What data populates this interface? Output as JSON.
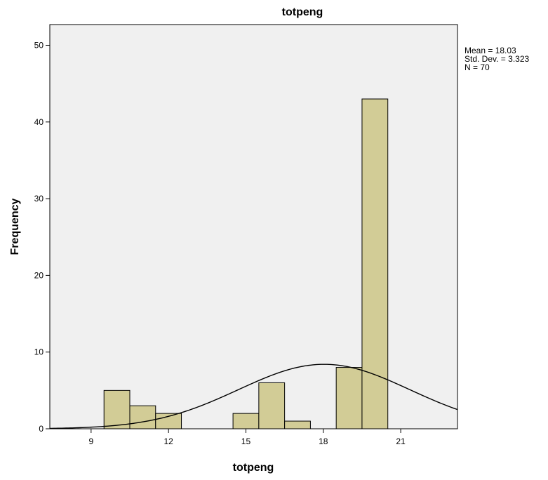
{
  "chart_data": {
    "type": "bar",
    "title": "totpeng",
    "xlabel": "totpeng",
    "ylabel": "Frequency",
    "bin_width": 1,
    "bins": [
      {
        "x_start": 9.5,
        "x_end": 10.5,
        "count": 5
      },
      {
        "x_start": 10.5,
        "x_end": 11.5,
        "count": 3
      },
      {
        "x_start": 11.5,
        "x_end": 12.5,
        "count": 2
      },
      {
        "x_start": 14.5,
        "x_end": 15.5,
        "count": 2
      },
      {
        "x_start": 15.5,
        "x_end": 16.5,
        "count": 6
      },
      {
        "x_start": 16.5,
        "x_end": 17.5,
        "count": 1
      },
      {
        "x_start": 18.5,
        "x_end": 19.5,
        "count": 8
      },
      {
        "x_start": 19.5,
        "x_end": 20.5,
        "count": 43
      }
    ],
    "xlim": [
      7.4,
      23.2
    ],
    "ylim": [
      0,
      52.7
    ],
    "x_ticks": [
      9,
      12,
      15,
      18,
      21
    ],
    "y_ticks": [
      0,
      10,
      20,
      30,
      40,
      50
    ],
    "normal_curve": {
      "mean": 18.03,
      "std_dev": 3.323,
      "n": 70
    },
    "grid": false,
    "colors": {
      "bar_fill": "#d2cc96",
      "bar_stroke": "#000000",
      "plot_bg": "#f0f0f0",
      "curve": "#000000"
    }
  },
  "stats": {
    "mean_label": "Mean = 18.03",
    "std_label": "Std. Dev. = 3.323",
    "n_label": "N = 70"
  }
}
